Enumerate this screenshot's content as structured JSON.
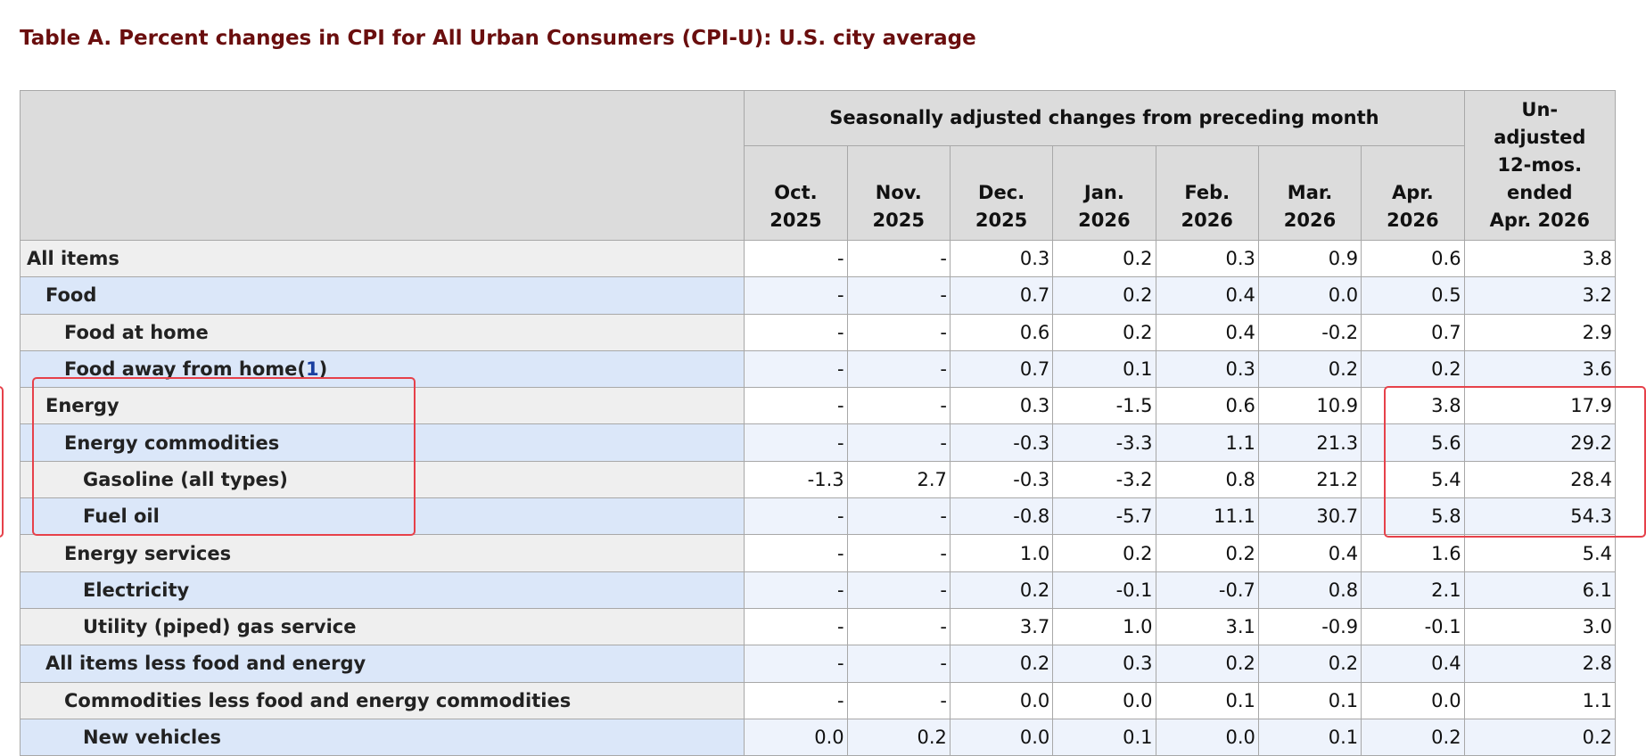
{
  "title": "Table A. Percent changes in CPI for All Urban Consumers (CPI-U): U.S. city average",
  "header": {
    "group_label": "Seasonally adjusted changes from preceding month",
    "months": [
      {
        "line1": "Oct.",
        "line2": "2025"
      },
      {
        "line1": "Nov.",
        "line2": "2025"
      },
      {
        "line1": "Dec.",
        "line2": "2025"
      },
      {
        "line1": "Jan.",
        "line2": "2026"
      },
      {
        "line1": "Feb.",
        "line2": "2026"
      },
      {
        "line1": "Mar.",
        "line2": "2026"
      },
      {
        "line1": "Apr.",
        "line2": "2026"
      }
    ],
    "unadjusted_lines": [
      "Un-",
      "adjusted",
      "12-mos.",
      "ended",
      "Apr. 2026"
    ]
  },
  "rows": [
    {
      "label": "All items",
      "values": [
        "-",
        "-",
        "0.3",
        "0.2",
        "0.3",
        "0.9",
        "0.6",
        "3.8"
      ]
    },
    {
      "label": "Food",
      "values": [
        "-",
        "-",
        "0.7",
        "0.2",
        "0.4",
        "0.0",
        "0.5",
        "3.2"
      ]
    },
    {
      "label": "Food at home",
      "values": [
        "-",
        "-",
        "0.6",
        "0.2",
        "0.4",
        "-0.2",
        "0.7",
        "2.9"
      ]
    },
    {
      "label": "Food away from home",
      "footnote": "1",
      "values": [
        "-",
        "-",
        "0.7",
        "0.1",
        "0.3",
        "0.2",
        "0.2",
        "3.6"
      ]
    },
    {
      "label": "Energy",
      "values": [
        "-",
        "-",
        "0.3",
        "-1.5",
        "0.6",
        "10.9",
        "3.8",
        "17.9"
      ]
    },
    {
      "label": "Energy commodities",
      "values": [
        "-",
        "-",
        "-0.3",
        "-3.3",
        "1.1",
        "21.3",
        "5.6",
        "29.2"
      ]
    },
    {
      "label": "Gasoline (all types)",
      "values": [
        "-1.3",
        "2.7",
        "-0.3",
        "-3.2",
        "0.8",
        "21.2",
        "5.4",
        "28.4"
      ]
    },
    {
      "label": "Fuel oil",
      "values": [
        "-",
        "-",
        "-0.8",
        "-5.7",
        "11.1",
        "30.7",
        "5.8",
        "54.3"
      ]
    },
    {
      "label": "Energy services",
      "values": [
        "-",
        "-",
        "1.0",
        "0.2",
        "0.2",
        "0.4",
        "1.6",
        "5.4"
      ]
    },
    {
      "label": "Electricity",
      "values": [
        "-",
        "-",
        "0.2",
        "-0.1",
        "-0.7",
        "0.8",
        "2.1",
        "6.1"
      ]
    },
    {
      "label": "Utility (piped) gas service",
      "values": [
        "-",
        "-",
        "3.7",
        "1.0",
        "3.1",
        "-0.9",
        "-0.1",
        "3.0"
      ]
    },
    {
      "label": "All items less food and energy",
      "values": [
        "-",
        "-",
        "0.2",
        "0.3",
        "0.2",
        "0.2",
        "0.4",
        "2.8"
      ]
    },
    {
      "label": "Commodities less food and energy commodities",
      "values": [
        "-",
        "-",
        "0.0",
        "0.0",
        "0.1",
        "0.1",
        "0.0",
        "1.1"
      ]
    },
    {
      "label": "New vehicles",
      "values": [
        "0.0",
        "0.2",
        "0.0",
        "0.1",
        "0.0",
        "0.1",
        "0.2",
        "0.2"
      ]
    }
  ],
  "colors": {
    "title": "#6a0e0e",
    "header_bg": "#dcdcdc",
    "row_label_alt": "#dbe7f9",
    "row_label_norm": "#efefef",
    "highlight_box": "#e6414a",
    "footnote_link": "#1a3fa0"
  }
}
